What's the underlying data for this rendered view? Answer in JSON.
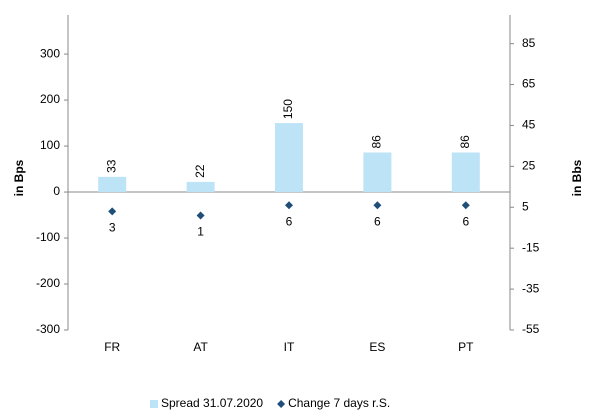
{
  "chart_data": {
    "type": "bar",
    "categories": [
      "FR",
      "AT",
      "IT",
      "ES",
      "PT"
    ],
    "series": [
      {
        "name": "Spread 31.07.2020",
        "color": "#bde3f7",
        "type": "bar",
        "values": [
          33,
          22,
          150,
          86,
          86
        ]
      },
      {
        "name": "Change 7 days r.S.",
        "color": "#1f4e79",
        "type": "scatter",
        "axis": "y2",
        "values": [
          3,
          1,
          6,
          6,
          6
        ]
      }
    ],
    "ylabel": "in Bps",
    "y2label": "in Bbs",
    "ylim": [
      -300,
      385
    ],
    "yticks": [
      -300,
      -200,
      -100,
      0,
      100,
      200,
      300
    ],
    "y2lim": [
      -55,
      99
    ],
    "y2ticks": [
      -55,
      -35,
      -15,
      5,
      25,
      45,
      65,
      85
    ],
    "legend": "bottom"
  }
}
